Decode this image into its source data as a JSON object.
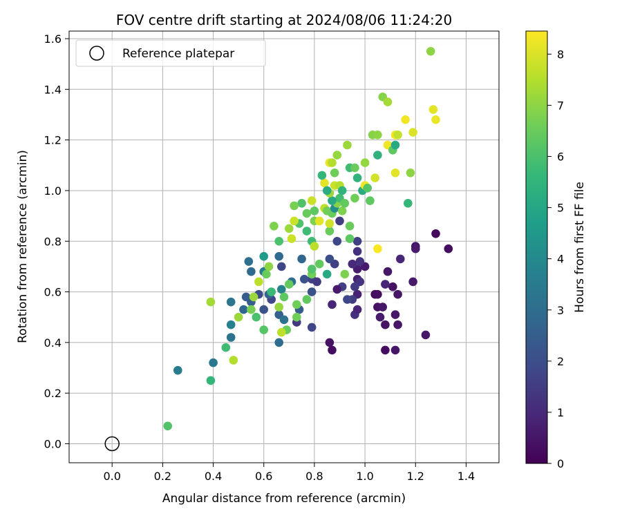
{
  "chart_data": {
    "type": "scatter",
    "title": "FOV centre drift starting at 2024/08/06 11:24:20",
    "xlabel": "Angular distance from reference (arcmin)",
    "ylabel": "Rotation from reference (arcmin)",
    "xlim": [
      -0.17,
      1.53
    ],
    "ylim": [
      -0.075,
      1.63
    ],
    "xticks": [
      0.0,
      0.2,
      0.4,
      0.6,
      0.8,
      1.0,
      1.2,
      1.4
    ],
    "xtick_labels": [
      "0.0",
      "0.2",
      "0.4",
      "0.6",
      "0.8",
      "1.0",
      "1.2",
      "1.4"
    ],
    "yticks": [
      0.0,
      0.2,
      0.4,
      0.6,
      0.8,
      1.0,
      1.2,
      1.4,
      1.6
    ],
    "ytick_labels": [
      "0.0",
      "0.2",
      "0.4",
      "0.6",
      "0.8",
      "1.0",
      "1.2",
      "1.4",
      "1.6"
    ],
    "grid": true,
    "legend": {
      "position": "top-left",
      "entries": [
        "Reference platepar"
      ]
    },
    "reference_point": {
      "x": 0.0,
      "y": 0.0,
      "label": "Reference platepar"
    },
    "colorbar": {
      "label": "Hours from first FF file",
      "min": 0,
      "max": 8.45,
      "ticks": [
        0,
        1,
        2,
        3,
        4,
        5,
        6,
        7,
        8
      ],
      "tick_labels": [
        "0",
        "1",
        "2",
        "3",
        "4",
        "5",
        "6",
        "7",
        "8"
      ],
      "colormap": "viridis"
    },
    "series": [
      {
        "values": [
          [
            1.28,
            0.83,
            0.2
          ],
          [
            1.33,
            0.77,
            0.3
          ],
          [
            1.2,
            0.78,
            0.5
          ],
          [
            1.2,
            0.77,
            0.6
          ],
          [
            1.14,
            0.73,
            0.9
          ],
          [
            1.19,
            0.64,
            0.6
          ],
          [
            1.24,
            0.43,
            0.5
          ],
          [
            1.12,
            0.37,
            0.5
          ],
          [
            1.08,
            0.37,
            0.3
          ],
          [
            1.08,
            0.47,
            0.4
          ],
          [
            1.12,
            0.51,
            0.5
          ],
          [
            1.13,
            0.47,
            0.5
          ],
          [
            1.06,
            0.5,
            0.6
          ],
          [
            1.05,
            0.54,
            0.4
          ],
          [
            1.07,
            0.54,
            0.5
          ],
          [
            1.04,
            0.59,
            0.2
          ],
          [
            1.05,
            0.59,
            0.3
          ],
          [
            1.11,
            0.62,
            0.4
          ],
          [
            1.13,
            0.59,
            0.5
          ],
          [
            1.08,
            0.63,
            0.9
          ],
          [
            1.09,
            0.68,
            0.5
          ],
          [
            1.0,
            0.7,
            0.6
          ],
          [
            0.97,
            0.69,
            0.7
          ],
          [
            0.95,
            0.71,
            1.0
          ],
          [
            0.98,
            0.72,
            1.2
          ],
          [
            0.97,
            0.65,
            0.8
          ],
          [
            0.98,
            0.64,
            1.2
          ],
          [
            0.96,
            0.62,
            1.4
          ],
          [
            0.97,
            0.59,
            0.8
          ],
          [
            0.95,
            0.57,
            1.5
          ],
          [
            0.93,
            0.57,
            1.8
          ],
          [
            0.96,
            0.51,
            1.2
          ],
          [
            0.97,
            0.53,
            0.9
          ],
          [
            0.91,
            0.62,
            1.6
          ],
          [
            0.89,
            0.61,
            0.6
          ],
          [
            0.87,
            0.55,
            0.9
          ],
          [
            0.86,
            0.4,
            0.4
          ],
          [
            0.87,
            0.37,
            0.3
          ],
          [
            0.97,
            0.76,
            1.2
          ],
          [
            0.97,
            0.8,
            1.6
          ],
          [
            0.89,
            0.8,
            1.8
          ],
          [
            0.88,
            0.71,
            1.6
          ],
          [
            0.86,
            0.73,
            2.0
          ],
          [
            0.79,
            0.6,
            2.1
          ],
          [
            0.79,
            0.65,
            1.6
          ],
          [
            0.81,
            0.64,
            1.4
          ],
          [
            0.79,
            0.46,
            1.8
          ],
          [
            0.73,
            0.48,
            1.4
          ],
          [
            0.74,
            0.53,
            2.4
          ],
          [
            0.76,
            0.65,
            2.2
          ],
          [
            0.75,
            0.73,
            2.8
          ],
          [
            0.71,
            0.64,
            3.0
          ],
          [
            0.67,
            0.61,
            3.8
          ],
          [
            0.66,
            0.51,
            2.6
          ],
          [
            0.66,
            0.4,
            3.0
          ],
          [
            0.68,
            0.49,
            3.2
          ],
          [
            0.63,
            0.57,
            1.8
          ],
          [
            0.6,
            0.53,
            2.2
          ],
          [
            0.62,
            0.59,
            2.7
          ],
          [
            0.6,
            0.68,
            3.5
          ],
          [
            0.58,
            0.59,
            2.0
          ],
          [
            0.55,
            0.56,
            2.5
          ],
          [
            0.53,
            0.58,
            2.4
          ],
          [
            0.52,
            0.53,
            2.8
          ],
          [
            0.55,
            0.68,
            2.9
          ],
          [
            0.54,
            0.72,
            3.1
          ],
          [
            0.6,
            0.74,
            4.6
          ],
          [
            0.67,
            0.7,
            1.8
          ],
          [
            0.66,
            0.74,
            2.9
          ],
          [
            0.47,
            0.56,
            3.3
          ],
          [
            0.47,
            0.47,
            3.7
          ],
          [
            0.47,
            0.42,
            3.2
          ],
          [
            0.4,
            0.32,
            3.4
          ],
          [
            0.26,
            0.29,
            3.5
          ],
          [
            0.39,
            0.25,
            5.6
          ],
          [
            0.22,
            0.07,
            6.1
          ],
          [
            0.45,
            0.38,
            5.8
          ],
          [
            0.39,
            0.56,
            7.3
          ],
          [
            0.48,
            0.33,
            7.5
          ],
          [
            0.5,
            0.5,
            7.2
          ],
          [
            0.57,
            0.5,
            6.0
          ],
          [
            0.6,
            0.45,
            6.2
          ],
          [
            0.55,
            0.53,
            6.7
          ],
          [
            0.61,
            0.67,
            6.5
          ],
          [
            0.63,
            0.6,
            5.7
          ],
          [
            0.68,
            0.58,
            6.3
          ],
          [
            0.7,
            0.63,
            6.4
          ],
          [
            0.69,
            0.45,
            6.5
          ],
          [
            0.73,
            0.55,
            6.6
          ],
          [
            0.66,
            0.54,
            7.1
          ],
          [
            0.67,
            0.44,
            7.6
          ],
          [
            0.73,
            0.5,
            6.6
          ],
          [
            0.77,
            0.57,
            6.4
          ],
          [
            0.79,
            0.67,
            6.6
          ],
          [
            0.79,
            0.69,
            6.1
          ],
          [
            0.82,
            0.71,
            6.4
          ],
          [
            0.85,
            0.67,
            5.1
          ],
          [
            0.92,
            0.67,
            6.8
          ],
          [
            0.58,
            0.64,
            7.6
          ],
          [
            0.56,
            0.58,
            7.2
          ],
          [
            0.62,
            0.7,
            7.0
          ],
          [
            0.64,
            0.86,
            6.8
          ],
          [
            0.66,
            0.8,
            6.0
          ],
          [
            0.7,
            0.85,
            7.2
          ],
          [
            0.74,
            0.87,
            6.1
          ],
          [
            0.77,
            0.84,
            5.8
          ],
          [
            0.75,
            0.95,
            6.1
          ],
          [
            0.79,
            0.8,
            5.8
          ],
          [
            0.71,
            0.81,
            7.8
          ],
          [
            0.72,
            0.88,
            7.8
          ],
          [
            0.72,
            0.94,
            6.7
          ],
          [
            0.77,
            0.91,
            6.5
          ],
          [
            0.79,
            0.96,
            7.8
          ],
          [
            0.8,
            0.92,
            6.3
          ],
          [
            0.8,
            0.88,
            6.8
          ],
          [
            0.8,
            0.78,
            7.6
          ],
          [
            0.82,
            0.88,
            8.1
          ],
          [
            0.84,
            0.93,
            7.6
          ],
          [
            0.85,
            0.92,
            6.6
          ],
          [
            0.86,
            0.84,
            6.5
          ],
          [
            0.86,
            0.87,
            7.9
          ],
          [
            0.87,
            0.91,
            6.5
          ],
          [
            0.88,
            0.93,
            4.2
          ],
          [
            0.89,
            0.95,
            6.9
          ],
          [
            0.9,
            0.97,
            5.9
          ],
          [
            0.91,
            0.92,
            6.8
          ],
          [
            0.92,
            0.95,
            6.4
          ],
          [
            0.94,
            0.86,
            6.5
          ],
          [
            0.94,
            0.81,
            6.3
          ],
          [
            0.9,
            0.88,
            1.5
          ],
          [
            0.87,
            0.96,
            5.1
          ],
          [
            0.86,
            0.99,
            7.2
          ],
          [
            0.84,
            1.03,
            8.1
          ],
          [
            0.85,
            1.0,
            5.2
          ],
          [
            0.83,
            1.06,
            5.6
          ],
          [
            0.86,
            1.11,
            8.2
          ],
          [
            0.87,
            1.11,
            7.5
          ],
          [
            0.88,
            1.07,
            6.6
          ],
          [
            0.88,
            1.02,
            7.8
          ],
          [
            0.89,
            1.14,
            7.1
          ],
          [
            0.9,
            1.02,
            7.5
          ],
          [
            0.91,
            1.0,
            5.5
          ],
          [
            0.93,
            1.18,
            7.2
          ],
          [
            0.94,
            1.09,
            5.8
          ],
          [
            0.96,
            1.09,
            6.5
          ],
          [
            0.96,
            0.97,
            6.6
          ],
          [
            0.97,
            1.05,
            5.4
          ],
          [
            0.99,
            1.0,
            5.2
          ],
          [
            1.0,
            1.11,
            7.1
          ],
          [
            1.0,
            1.02,
            8.3
          ],
          [
            1.01,
            1.01,
            6.2
          ],
          [
            1.02,
            0.96,
            6.3
          ],
          [
            1.04,
            1.05,
            7.9
          ],
          [
            1.05,
            0.77,
            8.4
          ],
          [
            1.05,
            1.14,
            5.4
          ],
          [
            1.03,
            1.22,
            6.9
          ],
          [
            1.05,
            1.22,
            7.0
          ],
          [
            1.07,
            1.37,
            6.9
          ],
          [
            1.09,
            1.35,
            7.3
          ],
          [
            1.09,
            1.18,
            8.3
          ],
          [
            1.11,
            1.16,
            6.3
          ],
          [
            1.12,
            1.07,
            8.1
          ],
          [
            1.12,
            1.18,
            5.1
          ],
          [
            1.12,
            1.22,
            8.3
          ],
          [
            1.13,
            1.22,
            7.7
          ],
          [
            1.16,
            1.28,
            8.3
          ],
          [
            1.17,
            0.95,
            5.6
          ],
          [
            1.18,
            1.07,
            7.0
          ],
          [
            1.19,
            1.23,
            8.0
          ],
          [
            1.26,
            1.55,
            7.0
          ],
          [
            1.27,
            1.32,
            8.1
          ],
          [
            1.28,
            1.28,
            8.2
          ]
        ]
      }
    ]
  }
}
